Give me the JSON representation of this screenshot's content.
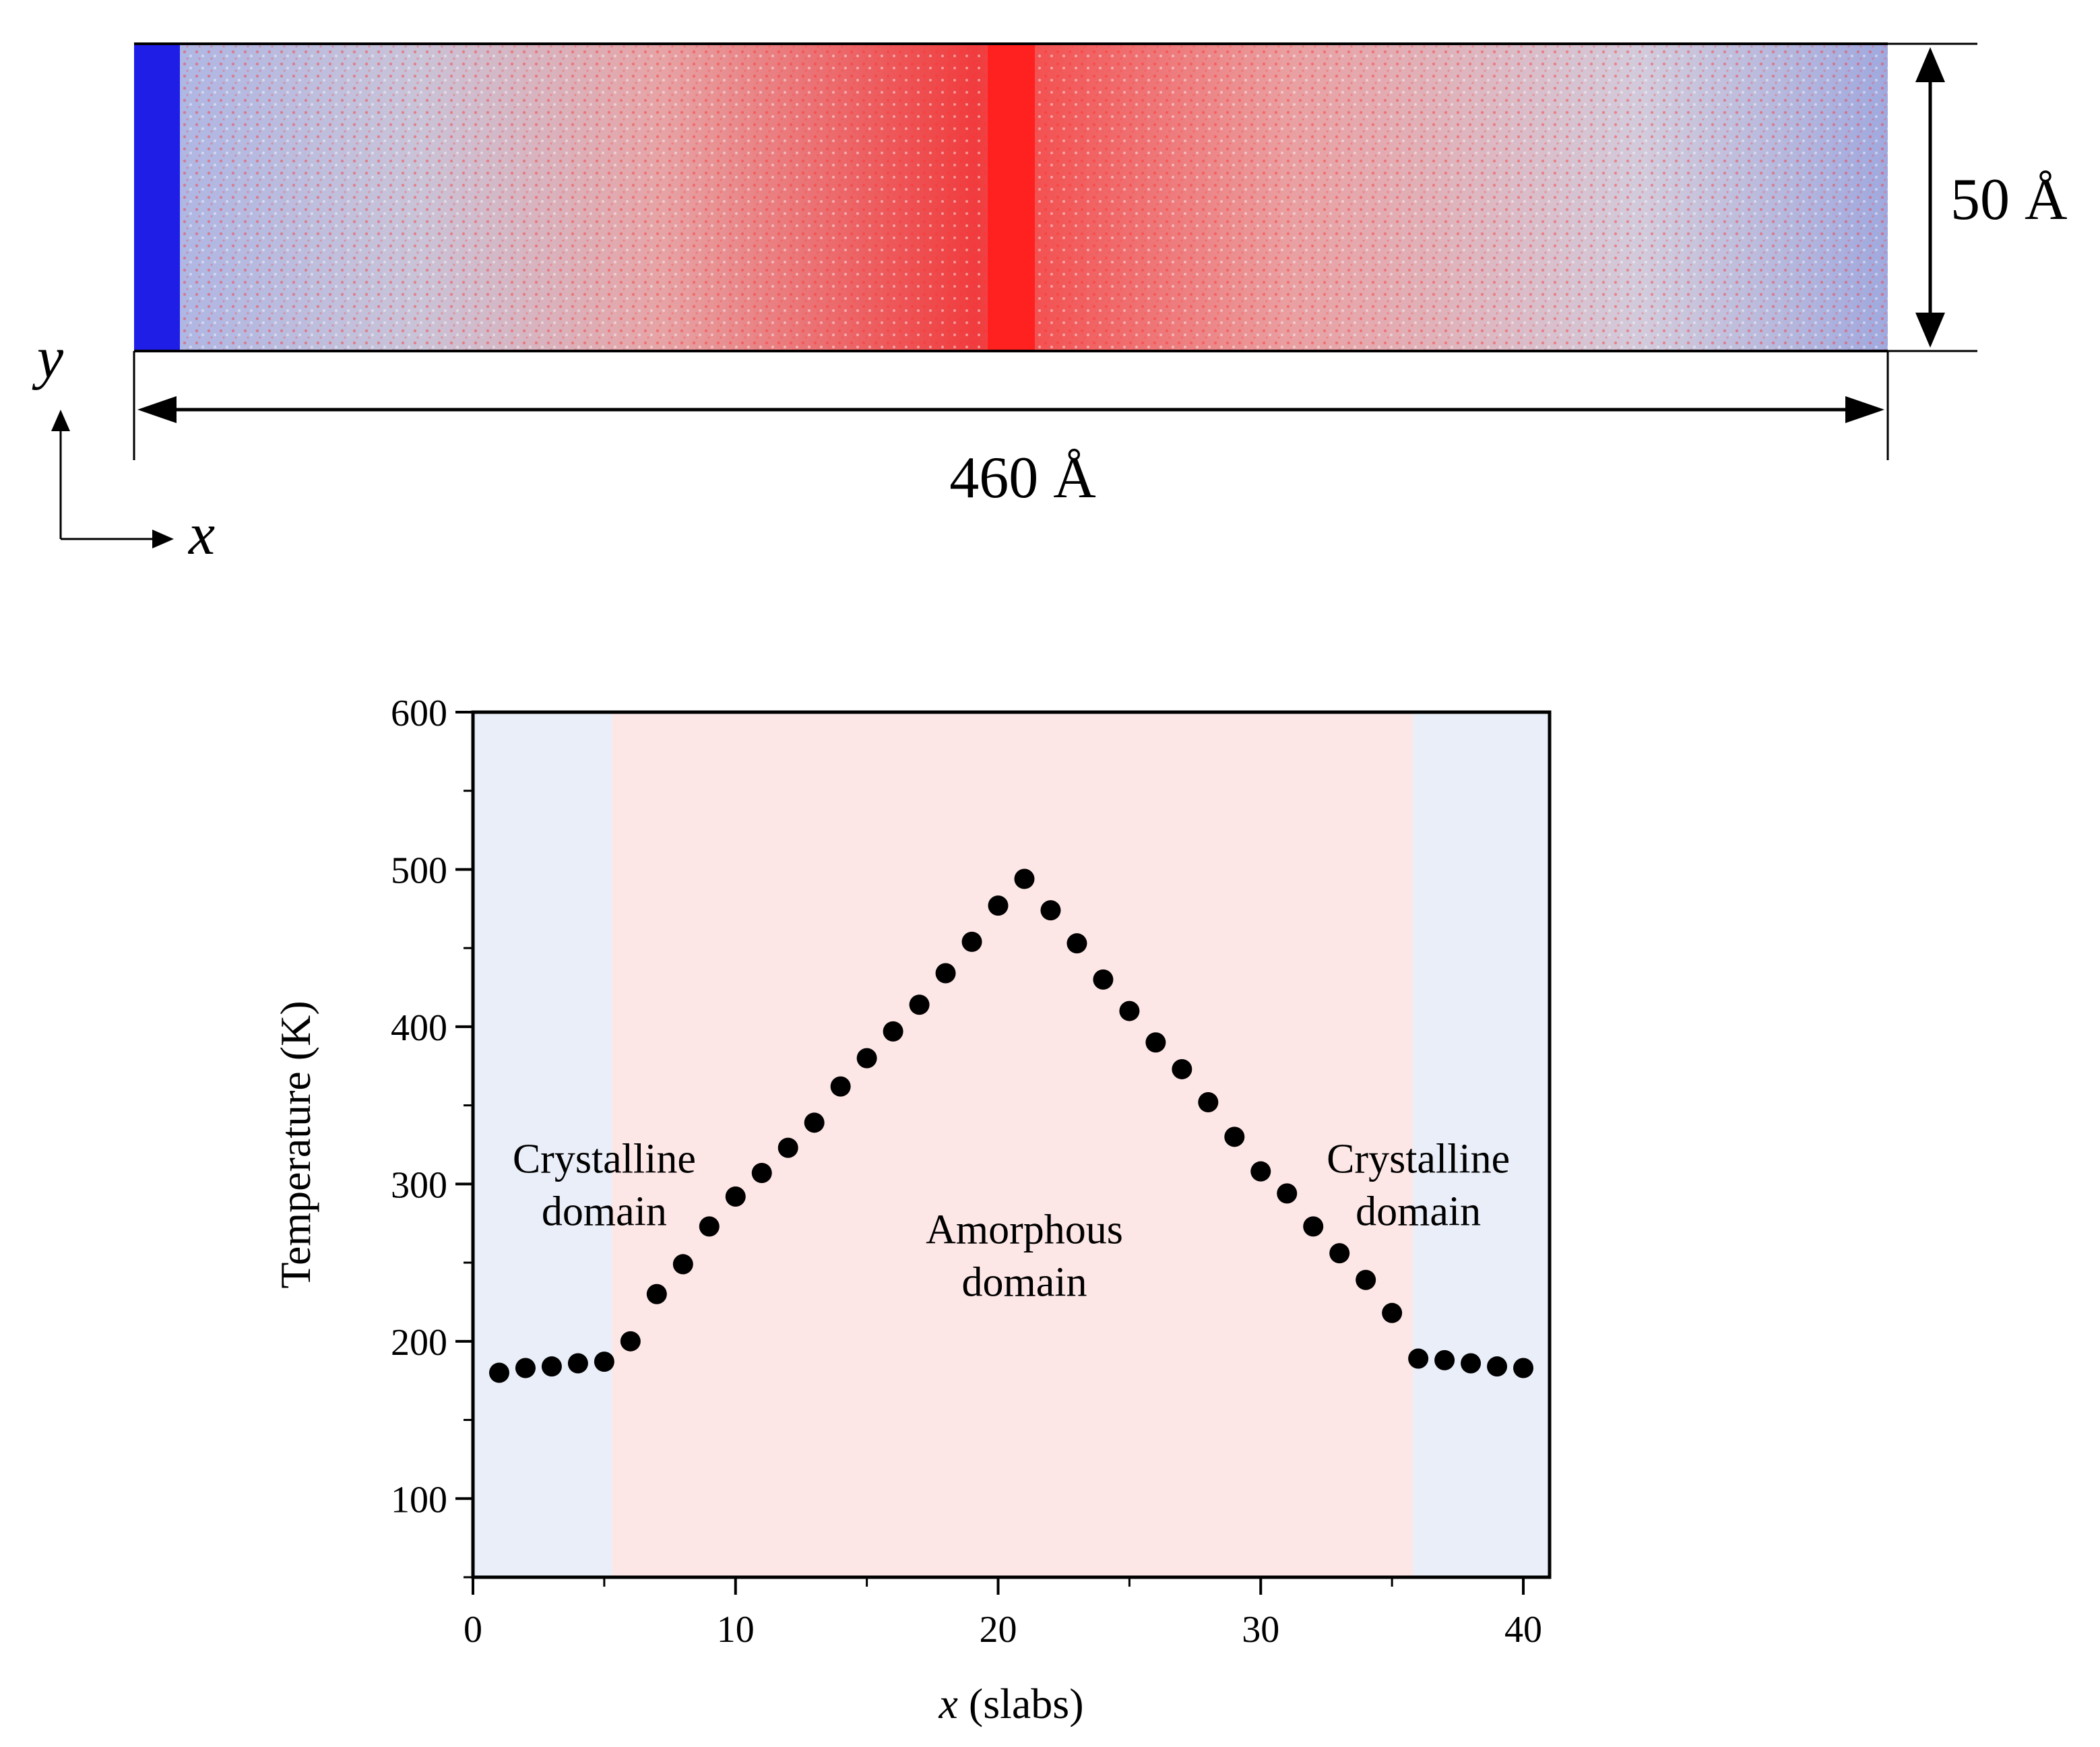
{
  "colors": {
    "hot": "#ff2020",
    "cold": "#1e1ee6",
    "crystalline_bg": "#e9eef8",
    "amorphous_bg": "#fde7e6",
    "marker": "#000000"
  },
  "schematic": {
    "length_label": "460 Å",
    "height_label": "50 Å",
    "axis_x": "x",
    "axis_y": "y"
  },
  "chart_data": {
    "type": "scatter",
    "xlabel_var": "x",
    "xlabel_unit": " (slabs)",
    "ylabel": "Temperature  (K)",
    "xlim": [
      0,
      41
    ],
    "ylim": [
      50,
      600
    ],
    "xticks": [
      0,
      10,
      20,
      30,
      40
    ],
    "yticks": [
      100,
      200,
      300,
      400,
      500,
      600
    ],
    "regions": [
      {
        "name": "crystalline",
        "x_start": 0,
        "x_end": 5.3,
        "lines": [
          "Crystalline",
          "domain"
        ],
        "label_x": 5.0,
        "label_y": 300
      },
      {
        "name": "amorphous",
        "x_start": 5.3,
        "x_end": 35.8,
        "lines": [
          "Amorphous",
          "domain"
        ],
        "label_x": 21.0,
        "label_y": 255
      },
      {
        "name": "crystalline",
        "x_start": 35.8,
        "x_end": 41,
        "lines": [
          "Crystalline",
          "domain"
        ],
        "label_x": 36.0,
        "label_y": 300
      }
    ],
    "x": [
      1,
      2,
      3,
      4,
      5,
      6,
      7,
      8,
      9,
      10,
      11,
      12,
      13,
      14,
      15,
      16,
      17,
      18,
      19,
      20,
      21,
      22,
      23,
      24,
      25,
      26,
      27,
      28,
      29,
      30,
      31,
      32,
      33,
      34,
      35,
      36,
      37,
      38,
      39,
      40
    ],
    "y": [
      180,
      183,
      184,
      186,
      187,
      200,
      230,
      249,
      273,
      292,
      307,
      323,
      339,
      362,
      380,
      397,
      414,
      434,
      454,
      477,
      494,
      474,
      453,
      430,
      410,
      390,
      373,
      352,
      330,
      308,
      294,
      273,
      256,
      239,
      218,
      189,
      188,
      186,
      184,
      183
    ]
  }
}
